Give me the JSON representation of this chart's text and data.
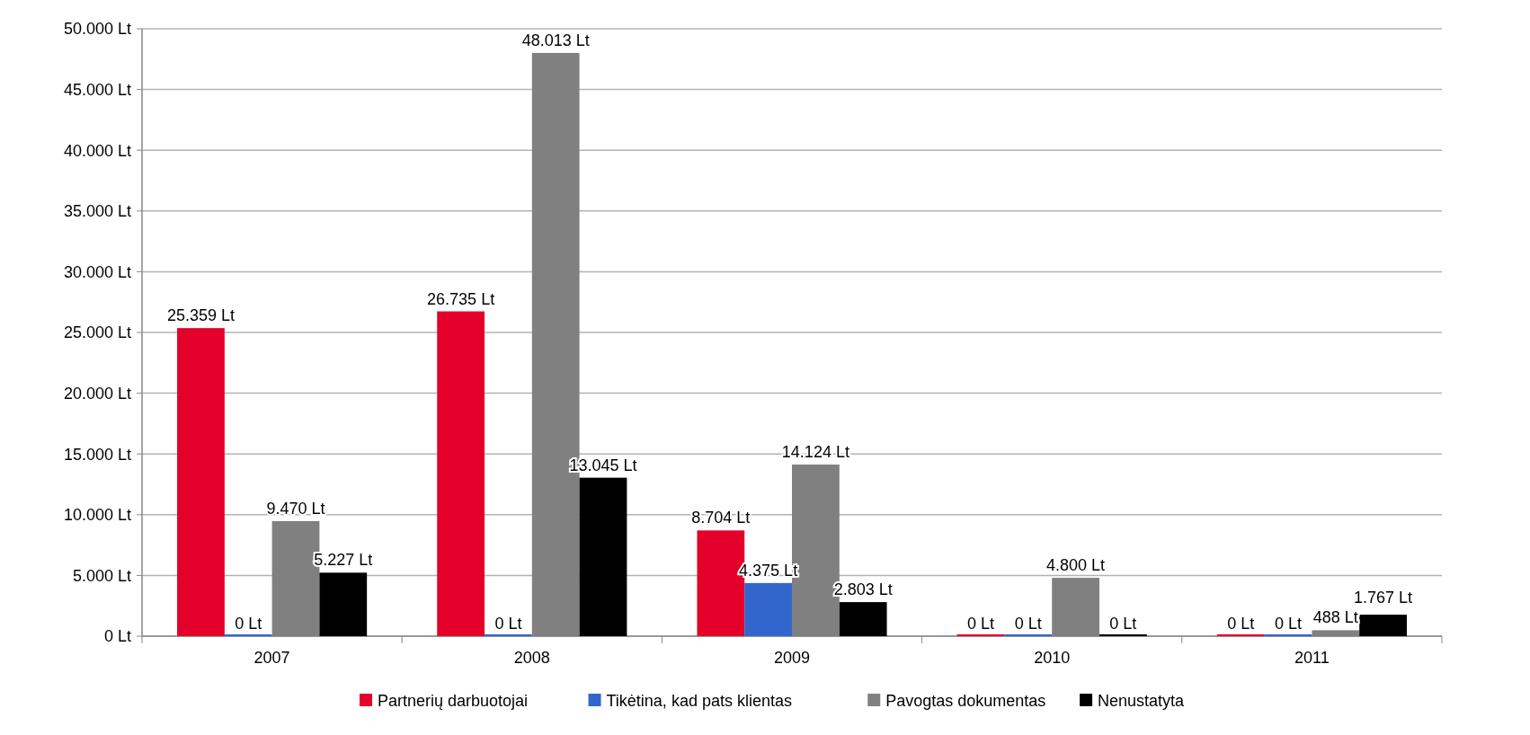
{
  "chart_data": {
    "type": "bar",
    "categories": [
      "2007",
      "2008",
      "2009",
      "2010",
      "2011"
    ],
    "series": [
      {
        "name": "Partnerių darbuotojai",
        "color": "#e4002b",
        "values": [
          25359,
          26735,
          8704,
          0,
          0
        ],
        "value_labels": [
          "25.359 Lt",
          "26.735 Lt",
          "8.704 Lt",
          "0 Lt",
          "0 Lt"
        ]
      },
      {
        "name": "Tikėtina, kad pats klientas",
        "color": "#3366cc",
        "values": [
          0,
          0,
          4375,
          0,
          0
        ],
        "value_labels": [
          "0 Lt",
          "0 Lt",
          "4.375 Lt",
          "0 Lt",
          "0 Lt"
        ]
      },
      {
        "name": "Pavogtas dokumentas",
        "color": "#808080",
        "values": [
          9470,
          48013,
          14124,
          4800,
          488
        ],
        "value_labels": [
          "9.470 Lt",
          "48.013 Lt",
          "14.124 Lt",
          "4.800 Lt",
          "488 Lt"
        ]
      },
      {
        "name": "Nenustatyta",
        "color": "#000000",
        "values": [
          5227,
          13045,
          2803,
          0,
          1767
        ],
        "value_labels": [
          "5.227 Lt",
          "13.045 Lt",
          "2.803 Lt",
          "0 Lt",
          "1.767 Lt"
        ]
      }
    ],
    "ylim": [
      0,
      50000
    ],
    "yticks": [
      {
        "value": 0,
        "label": "0 Lt"
      },
      {
        "value": 5000,
        "label": "5.000 Lt"
      },
      {
        "value": 10000,
        "label": "10.000 Lt"
      },
      {
        "value": 15000,
        "label": "15.000 Lt"
      },
      {
        "value": 20000,
        "label": "20.000 Lt"
      },
      {
        "value": 25000,
        "label": "25.000 Lt"
      },
      {
        "value": 30000,
        "label": "30.000 Lt"
      },
      {
        "value": 35000,
        "label": "35.000 Lt"
      },
      {
        "value": 40000,
        "label": "40.000 Lt"
      },
      {
        "value": 45000,
        "label": "45.000 Lt"
      },
      {
        "value": 50000,
        "label": "50.000 Lt"
      }
    ],
    "grid": "y",
    "legend": "bottom"
  }
}
